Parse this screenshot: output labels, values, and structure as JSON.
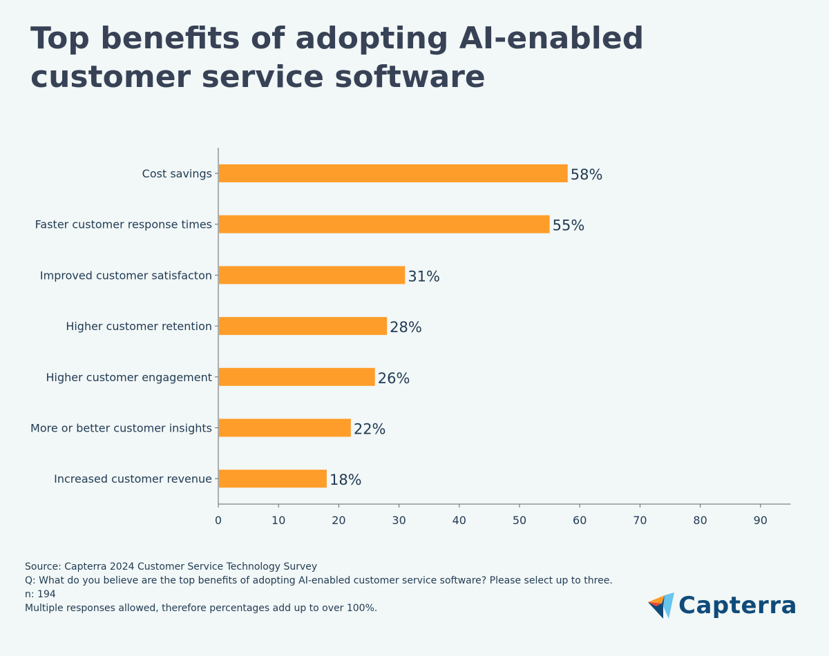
{
  "title": "Top benefits of adopting AI-enabled customer service software",
  "chart_data": {
    "type": "bar",
    "orientation": "horizontal",
    "categories": [
      "Cost savings",
      "Faster customer response times",
      "Improved customer satisfacton",
      "Higher customer retention",
      "Higher customer engagement",
      "More or better customer insights",
      "Increased customer revenue"
    ],
    "values": [
      58,
      55,
      31,
      28,
      26,
      22,
      18
    ],
    "data_labels": [
      "58%",
      "55%",
      "31%",
      "28%",
      "26%",
      "22%",
      "18%"
    ],
    "xlim": [
      0,
      95
    ],
    "xticks": [
      0,
      10,
      20,
      30,
      40,
      50,
      60,
      70,
      80,
      90
    ],
    "xlabel": "",
    "ylabel": "",
    "grid": false,
    "bar_color": "#ff9d2a"
  },
  "notes": {
    "source": "Source: Capterra 2024 Customer Service Technology Survey",
    "question": "Q: What do you believe are the top benefits of adopting AI-enabled customer service software? Please select up to three.",
    "n": "n: 194",
    "disclaimer": "Multiple responses allowed, therefore percentages add up to over 100%."
  },
  "logo": {
    "text": "Capterra"
  }
}
